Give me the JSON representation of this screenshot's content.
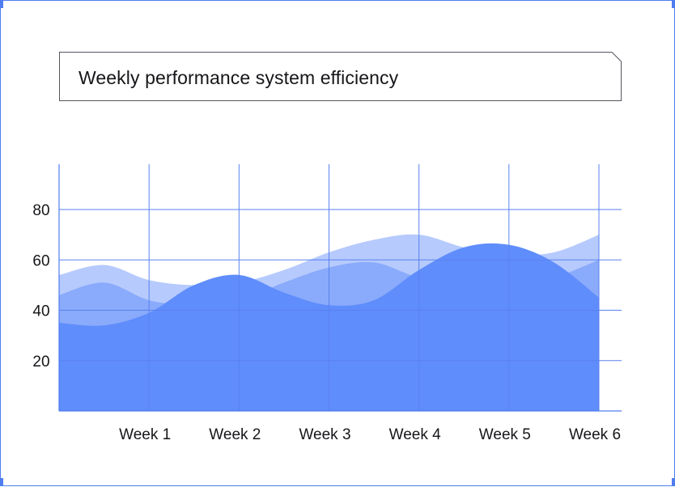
{
  "chart_data": {
    "type": "area",
    "title": "Weekly performance system efficiency",
    "xlabel": "",
    "ylabel": "",
    "categories": [
      "",
      "Week 1",
      "Week 2",
      "Week 3",
      "Week 4",
      "Week 5",
      "Week 6"
    ],
    "y_ticks": [
      20,
      40,
      60,
      80
    ],
    "ylim": [
      0,
      98
    ],
    "grid": true,
    "legend": "none",
    "series": [
      {
        "color": "#b6cafd",
        "points": [
          [
            0,
            54
          ],
          [
            0.5,
            58
          ],
          [
            1,
            52
          ],
          [
            1.5,
            50
          ],
          [
            2,
            51
          ],
          [
            2.5,
            56
          ],
          [
            3,
            63
          ],
          [
            3.5,
            68
          ],
          [
            4,
            70
          ],
          [
            4.5,
            65
          ],
          [
            5,
            62
          ],
          [
            5.5,
            63
          ],
          [
            6,
            70
          ]
        ]
      },
      {
        "color": "#8aaafb",
        "points": [
          [
            0,
            46
          ],
          [
            0.5,
            51
          ],
          [
            1,
            44
          ],
          [
            1.5,
            42
          ],
          [
            2,
            44
          ],
          [
            2.5,
            51
          ],
          [
            3,
            57
          ],
          [
            3.5,
            59
          ],
          [
            4,
            53
          ],
          [
            4.5,
            51
          ],
          [
            5,
            50
          ],
          [
            5.5,
            53
          ],
          [
            6,
            60
          ]
        ]
      },
      {
        "color": "#5f8dfb",
        "points": [
          [
            0,
            35
          ],
          [
            0.5,
            34
          ],
          [
            1,
            39
          ],
          [
            1.5,
            50
          ],
          [
            2,
            54
          ],
          [
            2.5,
            47
          ],
          [
            3,
            42
          ],
          [
            3.5,
            44
          ],
          [
            4,
            56
          ],
          [
            4.5,
            65
          ],
          [
            5,
            66
          ],
          [
            5.5,
            59
          ],
          [
            6,
            45
          ]
        ]
      }
    ]
  },
  "colors": {
    "grid": "#5a82f0",
    "axis": "#4f7df0",
    "frame": "#4f7df0",
    "title_border": "#55575e"
  }
}
